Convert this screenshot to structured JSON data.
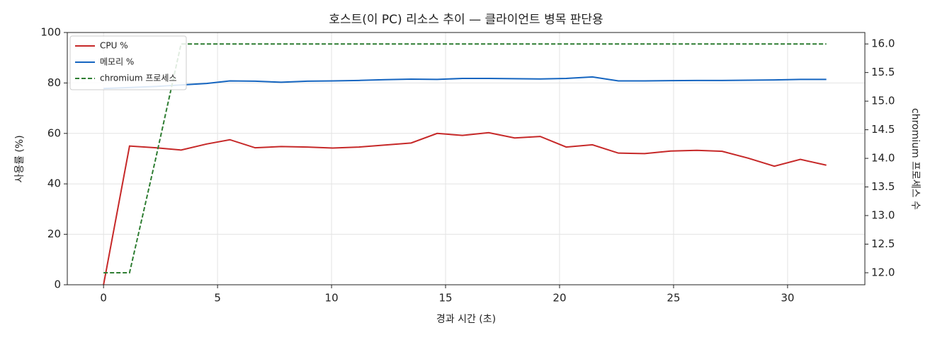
{
  "chart_data": {
    "type": "line",
    "title": "호스트(이 PC) 리소스 추이 — 클라이언트 병목 판단용",
    "xlabel": "경과 시간 (초)",
    "ylabel": "사용률 (%)",
    "y2label": "chromium 프로세스 수",
    "x": [
      0,
      1.14,
      2.29,
      3.4,
      4.52,
      5.54,
      6.65,
      7.79,
      8.94,
      10.05,
      11.2,
      12.34,
      13.49,
      14.63,
      15.74,
      16.89,
      18.03,
      19.15,
      20.29,
      21.44,
      22.58,
      23.73,
      24.87,
      26.02,
      27.13,
      28.27,
      29.42,
      30.56,
      31.7
    ],
    "series": [
      {
        "name": "CPU %",
        "color": "#c62828",
        "dash": false,
        "values": [
          0,
          55,
          54.3,
          53.4,
          55.8,
          57.5,
          54.3,
          54.8,
          54.6,
          54.2,
          54.6,
          55.4,
          56.2,
          60,
          59.2,
          60.3,
          58.2,
          58.8,
          54.6,
          55.5,
          52.2,
          52.0,
          53.0,
          53.3,
          52.9,
          50.2,
          47.0,
          49.7,
          47.4
        ]
      },
      {
        "name": "메모리 %",
        "color": "#1565c0",
        "dash": false,
        "values": [
          77.8,
          78.2,
          78.6,
          79.2,
          79.8,
          80.8,
          80.7,
          80.3,
          80.7,
          80.8,
          81.0,
          81.3,
          81.5,
          81.4,
          81.8,
          81.8,
          81.7,
          81.6,
          81.8,
          82.4,
          80.8,
          80.8,
          80.9,
          81.0,
          81.0,
          81.1,
          81.2,
          81.4,
          81.4
        ]
      },
      {
        "name": "chromium 프로세스",
        "color": "#2e7d32",
        "dash": true,
        "axis": "y2",
        "values": [
          12,
          12,
          14,
          16,
          16,
          16,
          16,
          16,
          16,
          16,
          16,
          16,
          16,
          16,
          16,
          16,
          16,
          16,
          16,
          16,
          16,
          16,
          16,
          16,
          16,
          16,
          16,
          16,
          16
        ]
      }
    ],
    "xlim": [
      -1.59,
      33.39
    ],
    "xticks": [
      0,
      5,
      10,
      15,
      20,
      25,
      30
    ],
    "ylim": [
      0,
      100
    ],
    "yticks": [
      0,
      20,
      40,
      60,
      80,
      100
    ],
    "y2lim": [
      11.79,
      16.2
    ],
    "y2ticks": [
      {
        "value": 12,
        "label": "12.0"
      },
      12.5,
      {
        "value": 13,
        "label": "13.0"
      },
      13.5,
      {
        "value": 14,
        "label": "14.0"
      },
      14.5,
      {
        "value": 15,
        "label": "15.0"
      },
      15.5,
      {
        "value": 16,
        "label": "16.0"
      }
    ],
    "grid": true,
    "legend": "upper-left"
  }
}
